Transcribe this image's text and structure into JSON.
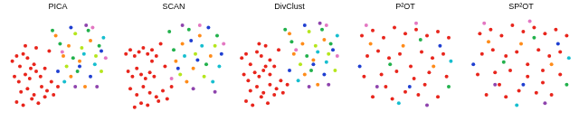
{
  "chart_data": [
    {
      "type": "scatter",
      "title": "PICA",
      "tick_labels": false,
      "grid": false,
      "series": [
        {
          "color": "#e8251c",
          "x": [
            8,
            12,
            15,
            18,
            22,
            25,
            28,
            10,
            14,
            20,
            24,
            30,
            34,
            38,
            16,
            22,
            28,
            35,
            40,
            44,
            12,
            18,
            26,
            32,
            38,
            46,
            50,
            20,
            30,
            42
          ],
          "values": [
            55,
            60,
            50,
            62,
            58,
            48,
            52,
            40,
            35,
            42,
            38,
            45,
            40,
            48,
            25,
            28,
            22,
            30,
            26,
            35,
            15,
            12,
            18,
            14,
            20,
            22,
            30,
            70,
            68,
            65
          ]
        },
        {
          "color": "#ff8c1a",
          "x": [
            55,
            60,
            70,
            62,
            80,
            48,
            75
          ],
          "values": [
            60,
            70,
            55,
            40,
            75,
            80,
            30
          ]
        },
        {
          "color": "#b5e61d",
          "x": [
            58,
            66,
            85,
            72,
            90
          ],
          "values": [
            50,
            82,
            60,
            68,
            45
          ]
        },
        {
          "color": "#22b14c",
          "x": [
            52,
            64,
            78,
            88,
            68,
            45
          ],
          "values": [
            72,
            58,
            85,
            70,
            45,
            85
          ]
        },
        {
          "color": "#17becf",
          "x": [
            56,
            74,
            84,
            92
          ],
          "values": [
            35,
            62,
            52,
            78
          ]
        },
        {
          "color": "#1f3fd1",
          "x": [
            62,
            80,
            90,
            70,
            50
          ],
          "values": [
            88,
            40,
            65,
            50,
            45
          ]
        },
        {
          "color": "#8e44ad",
          "x": [
            66,
            86,
            76
          ],
          "values": [
            30,
            30,
            90
          ]
        },
        {
          "color": "#e377c2",
          "x": [
            54,
            82,
            94
          ],
          "values": [
            64,
            88,
            58
          ]
        }
      ]
    },
    {
      "type": "scatter",
      "title": "SCAN",
      "tick_labels": false,
      "grid": false,
      "series": [
        {
          "color": "#e8251c",
          "x": [
            6,
            10,
            14,
            18,
            22,
            26,
            30,
            34,
            8,
            12,
            16,
            20,
            24,
            28,
            32,
            10,
            16,
            22,
            28,
            34,
            40,
            14,
            20,
            26,
            36,
            44,
            48,
            38,
            42,
            30
          ],
          "values": [
            62,
            66,
            60,
            64,
            68,
            62,
            66,
            60,
            45,
            40,
            48,
            42,
            38,
            44,
            40,
            28,
            22,
            30,
            24,
            20,
            26,
            10,
            14,
            12,
            16,
            18,
            30,
            72,
            50,
            55
          ]
        },
        {
          "color": "#ff8c1a",
          "x": [
            52,
            58,
            68,
            74,
            84,
            62
          ],
          "values": [
            55,
            72,
            48,
            80,
            60,
            35
          ]
        },
        {
          "color": "#b5e61d",
          "x": [
            56,
            70,
            88,
            78
          ],
          "values": [
            42,
            62,
            70,
            40
          ]
        },
        {
          "color": "#22b14c",
          "x": [
            50,
            64,
            80,
            90,
            46
          ],
          "values": [
            66,
            86,
            52,
            80,
            84
          ]
        },
        {
          "color": "#17becf",
          "x": [
            60,
            76,
            92,
            86
          ],
          "values": [
            60,
            70,
            50,
            35
          ]
        },
        {
          "color": "#1f3fd1",
          "x": [
            54,
            72,
            82,
            94,
            66
          ],
          "values": [
            48,
            56,
            88,
            62,
            75
          ]
        },
        {
          "color": "#8e44ad",
          "x": [
            68,
            88,
            58
          ],
          "values": [
            28,
            25,
            90
          ]
        },
        {
          "color": "#e377c2",
          "x": [
            74,
            96,
            48
          ],
          "values": [
            90,
            72,
            38
          ]
        }
      ]
    },
    {
      "type": "scatter",
      "title": "DivClust",
      "tick_labels": false,
      "grid": false,
      "series": [
        {
          "color": "#e8251c",
          "x": [
            6,
            10,
            14,
            20,
            24,
            28,
            32,
            8,
            12,
            18,
            22,
            26,
            32,
            36,
            14,
            20,
            26,
            32,
            38,
            42,
            10,
            16,
            24,
            30,
            36,
            44,
            48,
            22,
            28,
            40
          ],
          "values": [
            58,
            62,
            52,
            64,
            60,
            50,
            56,
            42,
            36,
            44,
            40,
            46,
            42,
            50,
            26,
            30,
            24,
            32,
            28,
            36,
            16,
            12,
            20,
            14,
            22,
            24,
            32,
            72,
            70,
            66
          ]
        },
        {
          "color": "#ff8c1a",
          "x": [
            54,
            62,
            72,
            64,
            82,
            50,
            76
          ],
          "values": [
            62,
            72,
            56,
            42,
            76,
            82,
            32
          ]
        },
        {
          "color": "#b5e61d",
          "x": [
            60,
            68,
            86,
            74,
            92
          ],
          "values": [
            52,
            84,
            62,
            70,
            46
          ]
        },
        {
          "color": "#22b14c",
          "x": [
            52,
            66,
            80,
            88,
            70,
            46
          ],
          "values": [
            74,
            60,
            86,
            72,
            46,
            86
          ]
        },
        {
          "color": "#17becf",
          "x": [
            58,
            76,
            84,
            94
          ],
          "values": [
            36,
            64,
            54,
            80
          ]
        },
        {
          "color": "#1f3fd1",
          "x": [
            64,
            82,
            90,
            72,
            50
          ],
          "values": [
            90,
            42,
            66,
            52,
            46
          ]
        },
        {
          "color": "#8e44ad",
          "x": [
            68,
            86,
            78
          ],
          "values": [
            30,
            32,
            92
          ]
        },
        {
          "color": "#e377c2",
          "x": [
            56,
            84,
            94
          ],
          "values": [
            66,
            90,
            60
          ]
        }
      ]
    },
    {
      "type": "scatter",
      "title": "P²OT",
      "tick_labels": false,
      "grid": false,
      "series": [
        {
          "color": "#e8251c",
          "x": [
            10,
            20,
            30,
            40,
            50,
            60,
            70,
            80,
            90,
            15,
            25,
            35,
            45,
            55,
            65,
            75,
            85,
            12,
            28,
            42,
            58,
            72,
            88,
            20,
            38,
            50,
            62,
            80,
            32,
            68
          ],
          "values": [
            80,
            85,
            78,
            88,
            82,
            86,
            80,
            84,
            78,
            60,
            65,
            58,
            62,
            50,
            64,
            58,
            62,
            40,
            42,
            45,
            38,
            44,
            40,
            20,
            18,
            25,
            22,
            20,
            30,
            32
          ]
        },
        {
          "color": "#ff8c1a",
          "x": [
            18,
            48,
            76
          ],
          "values": [
            72,
            70,
            50
          ]
        },
        {
          "color": "#22b14c",
          "x": [
            36,
            64,
            90
          ],
          "values": [
            52,
            76,
            30
          ]
        },
        {
          "color": "#1f3fd1",
          "x": [
            8,
            54,
            82
          ],
          "values": [
            50,
            30,
            70
          ]
        },
        {
          "color": "#8e44ad",
          "x": [
            24,
            70
          ],
          "values": [
            30,
            12
          ]
        },
        {
          "color": "#17becf",
          "x": [
            44,
            92
          ],
          "values": [
            14,
            55
          ]
        },
        {
          "color": "#e377c2",
          "x": [
            60,
            14
          ],
          "values": [
            92,
            90
          ]
        }
      ]
    },
    {
      "type": "scatter",
      "title": "SP²OT",
      "tick_labels": false,
      "grid": false,
      "series": [
        {
          "color": "#e8251c",
          "x": [
            12,
            22,
            32,
            42,
            52,
            62,
            72,
            82,
            92,
            14,
            24,
            36,
            46,
            56,
            66,
            76,
            86,
            10,
            26,
            40,
            56,
            70,
            86,
            18,
            36,
            48,
            64,
            78,
            30,
            70
          ],
          "values": [
            82,
            86,
            80,
            90,
            84,
            88,
            82,
            86,
            80,
            62,
            66,
            60,
            64,
            52,
            66,
            60,
            64,
            42,
            44,
            46,
            40,
            46,
            42,
            22,
            20,
            26,
            24,
            22,
            32,
            34
          ]
        },
        {
          "color": "#ff8c1a",
          "x": [
            20,
            50,
            78
          ],
          "values": [
            74,
            72,
            52
          ]
        },
        {
          "color": "#22b14c",
          "x": [
            34,
            62,
            92
          ],
          "values": [
            54,
            78,
            32
          ]
        },
        {
          "color": "#1f3fd1",
          "x": [
            6,
            52,
            84
          ],
          "values": [
            52,
            32,
            72
          ]
        },
        {
          "color": "#8e44ad",
          "x": [
            26,
            72
          ],
          "values": [
            32,
            14
          ]
        },
        {
          "color": "#17becf",
          "x": [
            46,
            94
          ],
          "values": [
            12,
            58
          ]
        },
        {
          "color": "#e377c2",
          "x": [
            58,
            16
          ],
          "values": [
            94,
            92
          ]
        }
      ]
    }
  ]
}
